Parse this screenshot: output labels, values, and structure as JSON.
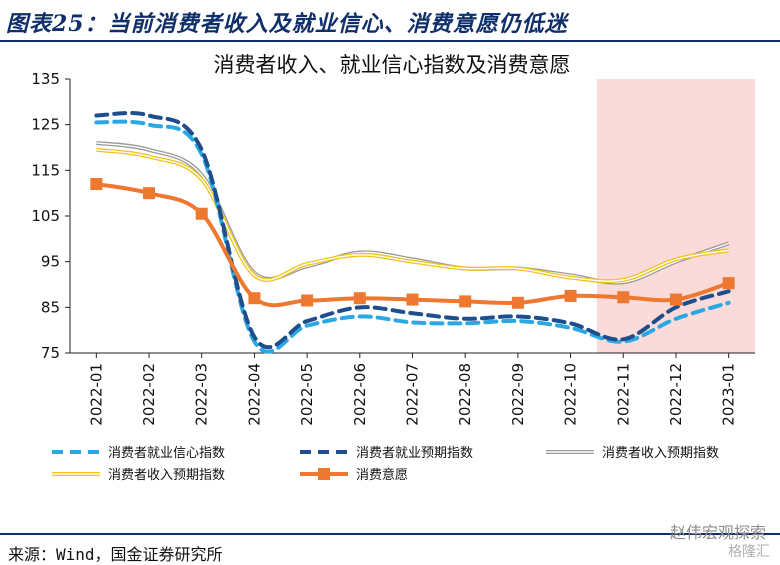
{
  "figure": {
    "title": "图表25：当前消费者收入及就业信心、消费意愿仍低迷",
    "source": "来源：Wind，国金证券研究所",
    "watermark": "赵伟宏观探索",
    "watermark2": "格隆汇"
  },
  "colors": {
    "light_blue": "#2aa8e3",
    "dark_blue": "#1f4e8c",
    "gray": "#9a9a9a",
    "yellow": "#f2c21d",
    "orange": "#ee7830",
    "shade": "#fbdada",
    "rule": "#0f2f6b"
  },
  "chart_data": {
    "type": "line",
    "title": "消费者收入、就业信心指数及消费意愿",
    "categories": [
      "2022-01",
      "2022-02",
      "2022-03",
      "2022-04",
      "2022-05",
      "2022-06",
      "2022-07",
      "2022-08",
      "2022-09",
      "2022-10",
      "2022-11",
      "2022-12",
      "2023-01"
    ],
    "ylim": [
      75,
      135
    ],
    "yticks": [
      75,
      85,
      95,
      105,
      115,
      125,
      135
    ],
    "shaded_region": {
      "from": "2022-11",
      "to": "2023-01"
    },
    "series": [
      {
        "name": "消费者就业信心指数",
        "style": "dashed",
        "color": "#2aa8e3",
        "values": [
          125.5,
          125.0,
          118.5,
          77.5,
          81.0,
          83.0,
          81.7,
          81.5,
          82.0,
          80.5,
          77.5,
          82.5,
          86.0
        ]
      },
      {
        "name": "消费者就业预期指数",
        "style": "dashed",
        "color": "#1f4e8c",
        "values": [
          127.0,
          127.0,
          119.5,
          78.5,
          82.0,
          85.0,
          83.7,
          82.5,
          83.0,
          81.5,
          78.0,
          85.0,
          88.5
        ]
      },
      {
        "name": "消费者收入预期指数",
        "style": "double",
        "color": "#9a9a9a",
        "values": [
          121.0,
          119.5,
          114.0,
          92.5,
          94.0,
          97.0,
          95.5,
          93.5,
          93.5,
          92.0,
          90.5,
          95.0,
          99.0
        ]
      },
      {
        "name": "消费者收入预期指数",
        "style": "double",
        "color": "#f2c21d",
        "values": [
          119.5,
          118.0,
          113.0,
          92.0,
          94.5,
          96.5,
          95.0,
          93.5,
          93.5,
          91.5,
          91.0,
          95.5,
          97.5
        ]
      },
      {
        "name": "消费意愿",
        "style": "solid-marker",
        "color": "#ee7830",
        "values": [
          112.0,
          110.0,
          105.5,
          87.0,
          86.5,
          87.0,
          86.7,
          86.3,
          86.0,
          87.5,
          87.2,
          86.7,
          90.3
        ]
      }
    ]
  }
}
